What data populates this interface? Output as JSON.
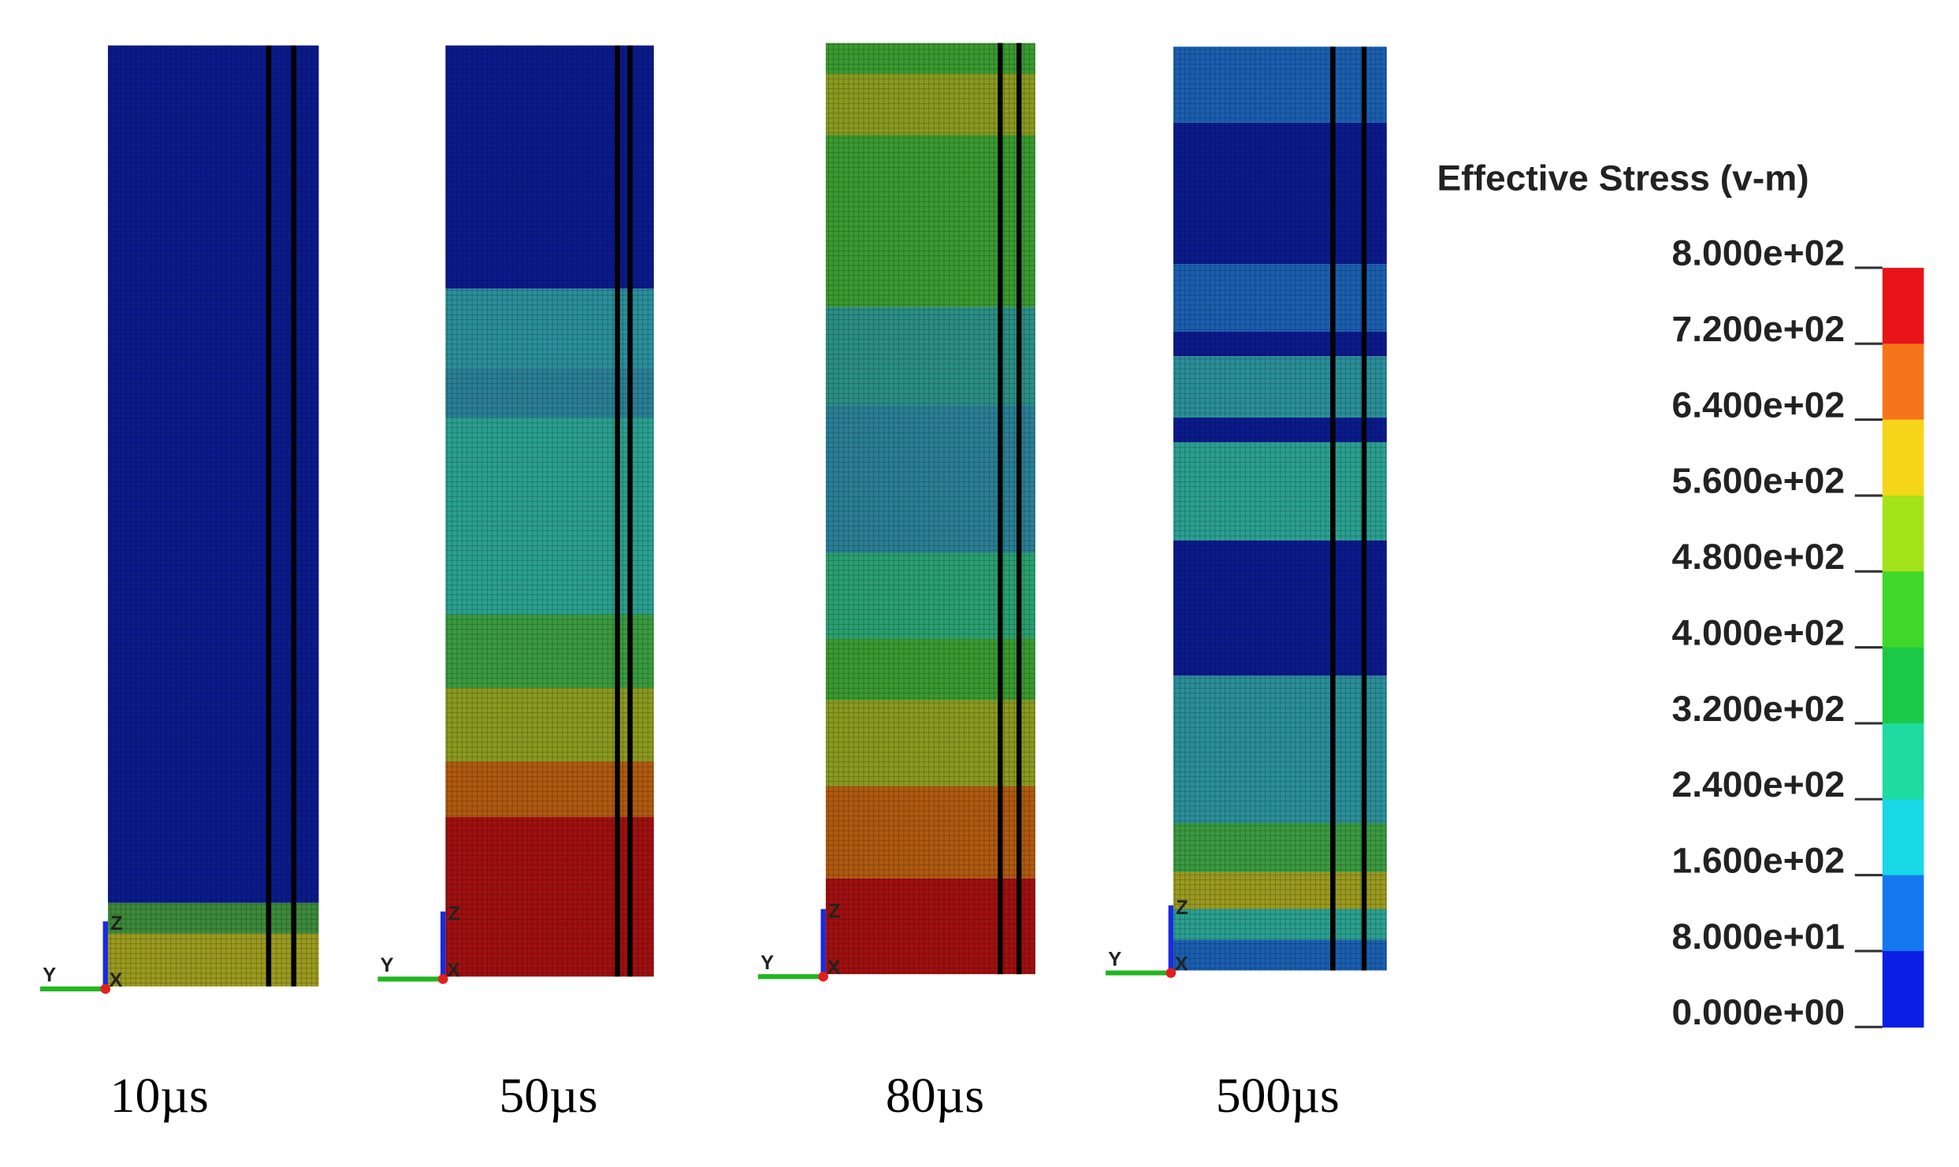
{
  "panels": [
    {
      "label": "10µs",
      "triad": {
        "y": "Y",
        "z": "Z",
        "x": "X"
      }
    },
    {
      "label": "50µs",
      "triad": {
        "y": "Y",
        "z": "Z",
        "x": "X"
      }
    },
    {
      "label": "80µs",
      "triad": {
        "y": "Y",
        "z": "Z",
        "x": "X"
      }
    },
    {
      "label": "500µs",
      "triad": {
        "y": "Y",
        "z": "Z",
        "x": "X"
      }
    }
  ],
  "legend": {
    "title": "Effective Stress (v-m)",
    "labels": [
      "8.000e+02",
      "7.200e+02",
      "6.400e+02",
      "5.600e+02",
      "4.800e+02",
      "4.000e+02",
      "3.200e+02",
      "2.400e+02",
      "1.600e+02",
      "8.000e+01",
      "0.000e+00"
    ],
    "colors": [
      "#e8141a",
      "#f7751a",
      "#f5d51a",
      "#a4e21a",
      "#3fd82a",
      "#1bc948",
      "#1fdba0",
      "#18d8e6",
      "#1577f0",
      "#0a1ee6"
    ]
  }
}
